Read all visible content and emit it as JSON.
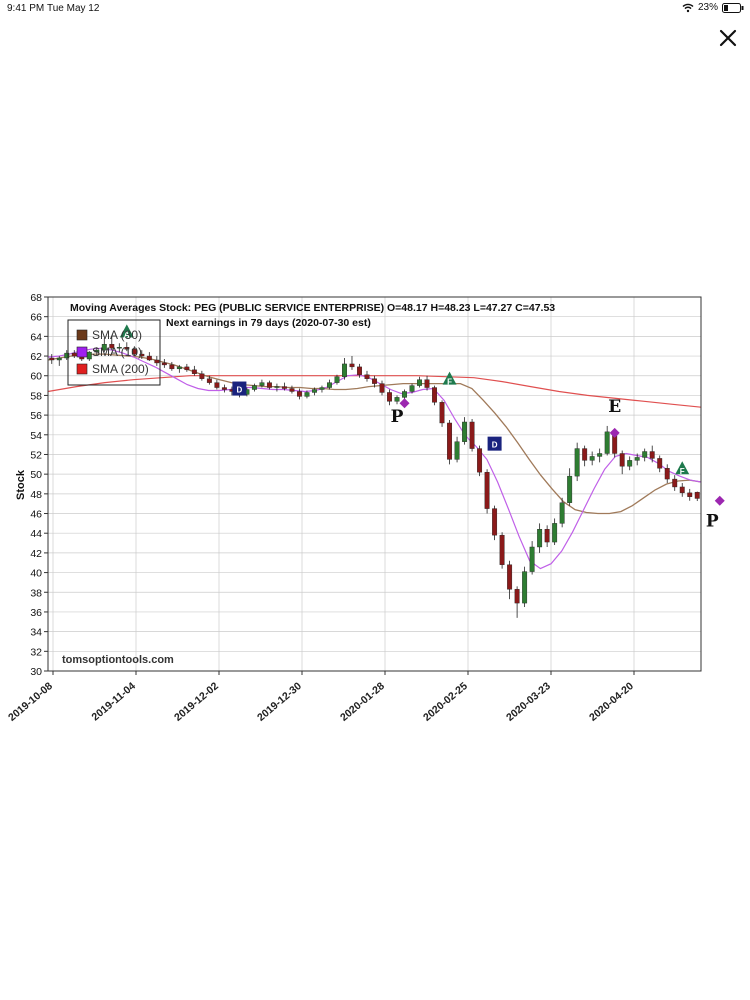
{
  "status_bar": {
    "time": "9:41 PM",
    "date": "Tue May 12",
    "battery": "23%"
  },
  "viewer": {
    "close_icon": "close-icon"
  },
  "chart_data": {
    "type": "candlestick",
    "title": "Moving Averages Stock: PEG (PUBLIC SERVICE ENTERPRISE) O=48.17  H=48.23  L=47.27  C=47.53",
    "subtitle": "Next earnings in 79 days  (2020-07-30 est)",
    "ylabel": "Stock",
    "watermark": "tomsoptiontools.com",
    "ylim": [
      30,
      68
    ],
    "y_ticks": [
      30,
      32,
      34,
      36,
      38,
      40,
      42,
      44,
      46,
      48,
      50,
      52,
      54,
      56,
      58,
      60,
      62,
      64,
      66,
      68
    ],
    "x_tick_labels": [
      "2019-10-08",
      "2019-11-04",
      "2019-12-02",
      "2019-12-30",
      "2020-01-28",
      "2020-02-25",
      "2020-03-23",
      "2020-04-20"
    ],
    "legend": [
      {
        "label": "SMA (30)",
        "color": "#6b3a1a"
      },
      {
        "label": "SMA (10)",
        "color": "#a020f0"
      },
      {
        "label": "SMA (200)",
        "color": "#e02020"
      }
    ],
    "legend_position": "top-left",
    "grid": true,
    "candles": [
      [
        61.8,
        62.2,
        61.2,
        61.6
      ],
      [
        61.6,
        62.0,
        61.0,
        61.8
      ],
      [
        61.8,
        62.6,
        61.6,
        62.3
      ],
      [
        62.3,
        62.6,
        61.8,
        62.0
      ],
      [
        62.0,
        62.4,
        61.5,
        61.7
      ],
      [
        61.7,
        62.5,
        61.5,
        62.4
      ],
      [
        62.4,
        62.9,
        62.1,
        62.6
      ],
      [
        62.6,
        63.8,
        62.4,
        63.2
      ],
      [
        63.2,
        64.0,
        62.6,
        62.8
      ],
      [
        62.8,
        63.3,
        62.4,
        62.9
      ],
      [
        62.9,
        63.4,
        62.5,
        62.7
      ],
      [
        62.7,
        63.0,
        62.0,
        62.2
      ],
      [
        62.2,
        62.6,
        61.7,
        62.0
      ],
      [
        62.0,
        62.4,
        61.5,
        61.6
      ],
      [
        61.6,
        62.0,
        61.0,
        61.3
      ],
      [
        61.3,
        61.7,
        60.8,
        61.1
      ],
      [
        61.1,
        61.4,
        60.5,
        60.7
      ],
      [
        60.7,
        61.1,
        60.3,
        60.9
      ],
      [
        60.9,
        61.2,
        60.4,
        60.6
      ],
      [
        60.6,
        61.0,
        60.0,
        60.2
      ],
      [
        60.2,
        60.5,
        59.5,
        59.7
      ],
      [
        59.7,
        60.0,
        59.1,
        59.3
      ],
      [
        59.3,
        59.6,
        58.6,
        58.8
      ],
      [
        58.8,
        59.1,
        58.3,
        58.6
      ],
      [
        58.6,
        58.9,
        58.0,
        58.4
      ],
      [
        58.4,
        58.7,
        57.8,
        58.1
      ],
      [
        58.1,
        58.8,
        57.9,
        58.6
      ],
      [
        58.6,
        59.2,
        58.4,
        59.0
      ],
      [
        59.0,
        59.6,
        58.8,
        59.3
      ],
      [
        59.3,
        59.5,
        58.6,
        58.8
      ],
      [
        58.8,
        59.2,
        58.4,
        58.9
      ],
      [
        58.9,
        59.3,
        58.5,
        58.7
      ],
      [
        58.7,
        59.0,
        58.2,
        58.4
      ],
      [
        58.4,
        58.7,
        57.6,
        57.9
      ],
      [
        57.9,
        58.5,
        57.7,
        58.3
      ],
      [
        58.3,
        58.8,
        58.0,
        58.6
      ],
      [
        58.6,
        59.0,
        58.3,
        58.8
      ],
      [
        58.8,
        59.6,
        58.6,
        59.3
      ],
      [
        59.3,
        60.1,
        59.1,
        59.9
      ],
      [
        59.9,
        61.8,
        59.6,
        61.2
      ],
      [
        61.2,
        62.0,
        60.6,
        60.9
      ],
      [
        60.9,
        61.2,
        59.8,
        60.1
      ],
      [
        60.1,
        60.5,
        59.4,
        59.7
      ],
      [
        59.7,
        60.0,
        58.8,
        59.2
      ],
      [
        59.2,
        59.5,
        58.0,
        58.3
      ],
      [
        58.3,
        58.6,
        57.0,
        57.4
      ],
      [
        57.4,
        58.0,
        57.1,
        57.8
      ],
      [
        57.8,
        58.6,
        57.6,
        58.4
      ],
      [
        58.4,
        59.2,
        58.2,
        59.0
      ],
      [
        59.0,
        59.9,
        58.8,
        59.6
      ],
      [
        59.6,
        60.0,
        58.5,
        58.8
      ],
      [
        58.8,
        59.0,
        57.0,
        57.3
      ],
      [
        57.3,
        57.5,
        54.8,
        55.2
      ],
      [
        55.2,
        55.5,
        51.0,
        51.5
      ],
      [
        51.5,
        53.8,
        51.2,
        53.3
      ],
      [
        53.3,
        55.8,
        53.0,
        55.3
      ],
      [
        55.3,
        55.6,
        52.3,
        52.6
      ],
      [
        52.6,
        52.9,
        49.8,
        50.2
      ],
      [
        50.2,
        50.5,
        46.0,
        46.5
      ],
      [
        46.5,
        46.8,
        43.3,
        43.8
      ],
      [
        43.8,
        44.1,
        40.4,
        40.8
      ],
      [
        40.8,
        41.2,
        37.3,
        38.3
      ],
      [
        38.3,
        38.6,
        35.4,
        36.9
      ],
      [
        36.9,
        40.6,
        36.5,
        40.1
      ],
      [
        40.1,
        43.2,
        39.8,
        42.6
      ],
      [
        42.6,
        45.0,
        42.0,
        44.4
      ],
      [
        44.4,
        44.8,
        42.6,
        43.1
      ],
      [
        43.1,
        45.5,
        42.8,
        45.0
      ],
      [
        45.0,
        47.6,
        44.6,
        47.1
      ],
      [
        47.1,
        50.6,
        46.8,
        49.8
      ],
      [
        49.8,
        53.2,
        49.3,
        52.6
      ],
      [
        52.6,
        52.9,
        50.8,
        51.4
      ],
      [
        51.4,
        52.3,
        50.9,
        51.8
      ],
      [
        51.8,
        52.6,
        51.2,
        52.1
      ],
      [
        52.1,
        54.9,
        51.9,
        54.3
      ],
      [
        54.3,
        54.6,
        51.7,
        52.1
      ],
      [
        52.1,
        52.4,
        50.0,
        50.8
      ],
      [
        50.8,
        51.8,
        50.4,
        51.4
      ],
      [
        51.4,
        52.1,
        50.9,
        51.7
      ],
      [
        51.7,
        52.6,
        51.3,
        52.3
      ],
      [
        52.3,
        52.9,
        51.2,
        51.6
      ],
      [
        51.6,
        51.9,
        50.2,
        50.6
      ],
      [
        50.6,
        51.0,
        49.1,
        49.5
      ],
      [
        49.5,
        49.9,
        48.3,
        48.7
      ],
      [
        48.7,
        49.1,
        47.7,
        48.1
      ],
      [
        48.1,
        48.5,
        47.3,
        47.7
      ],
      [
        48.17,
        48.23,
        47.27,
        47.53
      ]
    ],
    "sma10": [
      61.9,
      62.0,
      62.2,
      62.5,
      62.7,
      62.8,
      62.6,
      62.3,
      61.9,
      61.4,
      60.9,
      60.3,
      59.7,
      59.1,
      58.7,
      58.5,
      58.5,
      58.6,
      58.8,
      58.8,
      58.7,
      58.6,
      58.6,
      58.5,
      58.4,
      58.5,
      58.8,
      59.4,
      60.0,
      60.1,
      59.8,
      59.2,
      58.6,
      58.2,
      58.3,
      58.6,
      58.7,
      57.5,
      55.6,
      53.9,
      52.8,
      51.5,
      49.2,
      46.5,
      43.7,
      41.2,
      40.4,
      40.9,
      42.2,
      44.1,
      46.3,
      48.5,
      50.5,
      51.8,
      52.1,
      51.9,
      51.7,
      51.1,
      50.3,
      49.8,
      49.4,
      49.2
    ],
    "sma30": [
      61.6,
      61.8,
      62.0,
      62.1,
      62.2,
      62.2,
      62.1,
      62.0,
      61.9,
      61.7,
      61.4,
      61.1,
      60.7,
      60.3,
      59.9,
      59.6,
      59.3,
      59.1,
      59.0,
      58.9,
      58.9,
      58.8,
      58.8,
      58.7,
      58.7,
      58.6,
      58.6,
      58.7,
      58.9,
      59.0,
      59.1,
      59.2,
      59.2,
      59.2,
      59.2,
      59.2,
      59.2,
      58.7,
      57.5,
      56.2,
      54.8,
      53.2,
      51.5,
      49.9,
      48.5,
      47.2,
      46.4,
      46.1,
      46.0,
      46.0,
      46.2,
      46.8,
      47.6,
      48.4,
      49.0,
      49.3,
      49.4,
      49.2
    ],
    "sma200": [
      58.4,
      58.9,
      59.3,
      59.6,
      59.8,
      60.0,
      60.0,
      60.0,
      60.0,
      60.0,
      60.0,
      60.0,
      60.0,
      60.0,
      59.9,
      59.8,
      59.4,
      58.9,
      58.4,
      58.0,
      57.7,
      57.4,
      57.1,
      56.8
    ],
    "annotations": [
      {
        "text": "P",
        "x_index": 46,
        "y": 55.3
      },
      {
        "text": "E",
        "x_index": 75,
        "y": 56.3
      },
      {
        "text": "P",
        "x_index": 88,
        "y": 44.7
      }
    ],
    "markers": [
      {
        "type": "triangle",
        "label": "A",
        "x_index": 10,
        "y": 64.3,
        "color": "#1f7a4d"
      },
      {
        "type": "square",
        "label": "D",
        "x_index": 25,
        "y": 58.7,
        "color": "#1a237e"
      },
      {
        "type": "diamond",
        "label": "",
        "x_index": 47,
        "y": 57.2,
        "color": "#9c27b0"
      },
      {
        "type": "triangle",
        "label": "F",
        "x_index": 53,
        "y": 59.5,
        "color": "#1f7a4d"
      },
      {
        "type": "square",
        "label": "D",
        "x_index": 59,
        "y": 53.1,
        "color": "#1a237e"
      },
      {
        "type": "diamond",
        "label": "",
        "x_index": 75,
        "y": 54.2,
        "color": "#9c27b0"
      },
      {
        "type": "triangle",
        "label": "F",
        "x_index": 84,
        "y": 50.4,
        "color": "#1f7a4d"
      },
      {
        "type": "diamond",
        "label": "",
        "x_index": 89,
        "y": 47.3,
        "color": "#9c27b0"
      }
    ],
    "colors": {
      "up": "#2e7d32",
      "down": "#8b1a1a",
      "grid": "#cccccc",
      "axis": "#333333"
    }
  }
}
